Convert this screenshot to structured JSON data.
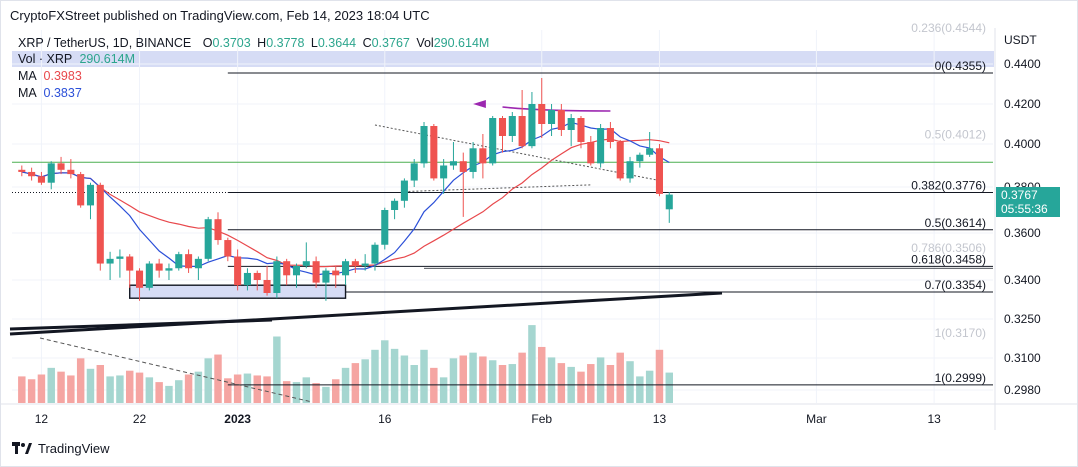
{
  "header": {
    "published_text": "CryptoFXStreet published on TradingView.com, Feb 14, 2023 18:04 UTC"
  },
  "legend": {
    "symbol_text": "XRP / TetherUS, 1D, BINANCE",
    "o_label": "O",
    "o_value": "0.3703",
    "h_label": "H",
    "h_value": "0.3778",
    "l_label": "L",
    "l_value": "0.3644",
    "c_label": "C",
    "c_value": "0.3767",
    "vol_label": "Vol",
    "vol_value": "290.614M",
    "vol_xrp_label": "Vol · XRP",
    "vol_xrp_value": "290.614M",
    "ma1_label": "MA",
    "ma1_value": "0.3983",
    "ma2_label": "MA",
    "ma2_value": "0.3837"
  },
  "price_badge": {
    "price": "0.3767",
    "countdown": "05:55:36"
  },
  "footer": {
    "brand": "TradingView"
  },
  "colors": {
    "up": "#26a69a",
    "down": "#ef5350",
    "vol_up": "#a5d6d0",
    "vol_down": "#f5a5a2",
    "ma_red": "#e8484c",
    "ma_blue": "#2b4fd8",
    "purple": "#9c27b0",
    "green_line": "#4caf50",
    "fib_faded": "#b2b5be"
  },
  "chart_data": {
    "type": "candlestick",
    "symbol": "XRP / TetherUS",
    "timeframe": "1D",
    "exchange": "BINANCE",
    "y_axis": {
      "unit": "USDT",
      "range": [
        0.295,
        0.4455
      ],
      "tick_labels": [
        "0.4400",
        "0.4200",
        "0.4000",
        "0.3800",
        "0.3600",
        "0.3400",
        "0.3250",
        "0.3100",
        "0.2980"
      ]
    },
    "x_axis": {
      "range": [
        "2022-12-09",
        "2023-03-19"
      ],
      "tick_labels": [
        {
          "label": "12",
          "date": "2022-12-12"
        },
        {
          "label": "22",
          "date": "2022-12-22"
        },
        {
          "label": "2023",
          "date": "2023-01-01"
        },
        {
          "label": "16",
          "date": "2023-01-16"
        },
        {
          "label": "Feb",
          "date": "2023-02-01"
        },
        {
          "label": "13",
          "date": "2023-02-13"
        },
        {
          "label": "Mar",
          "date": "2023-03-01"
        },
        {
          "label": "13",
          "date": "2023-03-13"
        }
      ]
    },
    "candles": [
      {
        "date": "2022-12-10",
        "o": 0.388,
        "h": 0.39,
        "l": 0.385,
        "c": 0.387,
        "v": 0.28
      },
      {
        "date": "2022-12-11",
        "o": 0.387,
        "h": 0.389,
        "l": 0.383,
        "c": 0.385,
        "v": 0.25
      },
      {
        "date": "2022-12-12",
        "o": 0.385,
        "h": 0.387,
        "l": 0.381,
        "c": 0.382,
        "v": 0.3
      },
      {
        "date": "2022-12-13",
        "o": 0.382,
        "h": 0.392,
        "l": 0.379,
        "c": 0.391,
        "v": 0.37
      },
      {
        "date": "2022-12-14",
        "o": 0.391,
        "h": 0.394,
        "l": 0.386,
        "c": 0.388,
        "v": 0.33
      },
      {
        "date": "2022-12-15",
        "o": 0.388,
        "h": 0.393,
        "l": 0.384,
        "c": 0.386,
        "v": 0.29
      },
      {
        "date": "2022-12-16",
        "o": 0.386,
        "h": 0.387,
        "l": 0.371,
        "c": 0.372,
        "v": 0.47
      },
      {
        "date": "2022-12-17",
        "o": 0.372,
        "h": 0.382,
        "l": 0.366,
        "c": 0.381,
        "v": 0.36
      },
      {
        "date": "2022-12-18",
        "o": 0.381,
        "h": 0.382,
        "l": 0.344,
        "c": 0.347,
        "v": 0.4
      },
      {
        "date": "2022-12-19",
        "o": 0.347,
        "h": 0.352,
        "l": 0.34,
        "c": 0.349,
        "v": 0.28
      },
      {
        "date": "2022-12-20",
        "o": 0.349,
        "h": 0.353,
        "l": 0.341,
        "c": 0.35,
        "v": 0.29
      },
      {
        "date": "2022-12-21",
        "o": 0.35,
        "h": 0.351,
        "l": 0.337,
        "c": 0.344,
        "v": 0.34
      },
      {
        "date": "2022-12-22",
        "o": 0.344,
        "h": 0.345,
        "l": 0.332,
        "c": 0.337,
        "v": 0.32
      },
      {
        "date": "2022-12-23",
        "o": 0.337,
        "h": 0.348,
        "l": 0.336,
        "c": 0.347,
        "v": 0.27
      },
      {
        "date": "2022-12-24",
        "o": 0.347,
        "h": 0.349,
        "l": 0.341,
        "c": 0.344,
        "v": 0.22
      },
      {
        "date": "2022-12-25",
        "o": 0.344,
        "h": 0.347,
        "l": 0.34,
        "c": 0.345,
        "v": 0.18
      },
      {
        "date": "2022-12-26",
        "o": 0.345,
        "h": 0.352,
        "l": 0.344,
        "c": 0.351,
        "v": 0.24
      },
      {
        "date": "2022-12-27",
        "o": 0.351,
        "h": 0.353,
        "l": 0.343,
        "c": 0.345,
        "v": 0.3
      },
      {
        "date": "2022-12-28",
        "o": 0.345,
        "h": 0.35,
        "l": 0.34,
        "c": 0.349,
        "v": 0.33
      },
      {
        "date": "2022-12-29",
        "o": 0.349,
        "h": 0.367,
        "l": 0.348,
        "c": 0.366,
        "v": 0.47
      },
      {
        "date": "2022-12-30",
        "o": 0.366,
        "h": 0.369,
        "l": 0.355,
        "c": 0.357,
        "v": 0.51
      },
      {
        "date": "2022-12-31",
        "o": 0.357,
        "h": 0.358,
        "l": 0.348,
        "c": 0.35,
        "v": 0.26
      },
      {
        "date": "2023-01-01",
        "o": 0.35,
        "h": 0.353,
        "l": 0.336,
        "c": 0.338,
        "v": 0.3
      },
      {
        "date": "2023-01-02",
        "o": 0.338,
        "h": 0.345,
        "l": 0.336,
        "c": 0.343,
        "v": 0.31
      },
      {
        "date": "2023-01-03",
        "o": 0.343,
        "h": 0.344,
        "l": 0.336,
        "c": 0.34,
        "v": 0.29
      },
      {
        "date": "2023-01-04",
        "o": 0.34,
        "h": 0.346,
        "l": 0.334,
        "c": 0.335,
        "v": 0.28
      },
      {
        "date": "2023-01-05",
        "o": 0.335,
        "h": 0.35,
        "l": 0.333,
        "c": 0.348,
        "v": 0.7
      },
      {
        "date": "2023-01-06",
        "o": 0.348,
        "h": 0.349,
        "l": 0.338,
        "c": 0.342,
        "v": 0.23
      },
      {
        "date": "2023-01-07",
        "o": 0.342,
        "h": 0.347,
        "l": 0.337,
        "c": 0.346,
        "v": 0.22
      },
      {
        "date": "2023-01-08",
        "o": 0.346,
        "h": 0.356,
        "l": 0.345,
        "c": 0.348,
        "v": 0.27
      },
      {
        "date": "2023-01-09",
        "o": 0.348,
        "h": 0.35,
        "l": 0.337,
        "c": 0.339,
        "v": 0.21
      },
      {
        "date": "2023-01-10",
        "o": 0.339,
        "h": 0.345,
        "l": 0.332,
        "c": 0.344,
        "v": 0.17
      },
      {
        "date": "2023-01-11",
        "o": 0.344,
        "h": 0.346,
        "l": 0.337,
        "c": 0.342,
        "v": 0.25
      },
      {
        "date": "2023-01-12",
        "o": 0.342,
        "h": 0.349,
        "l": 0.338,
        "c": 0.348,
        "v": 0.37
      },
      {
        "date": "2023-01-13",
        "o": 0.348,
        "h": 0.349,
        "l": 0.343,
        "c": 0.346,
        "v": 0.42
      },
      {
        "date": "2023-01-14",
        "o": 0.346,
        "h": 0.351,
        "l": 0.344,
        "c": 0.347,
        "v": 0.46
      },
      {
        "date": "2023-01-15",
        "o": 0.347,
        "h": 0.356,
        "l": 0.344,
        "c": 0.355,
        "v": 0.56
      },
      {
        "date": "2023-01-16",
        "o": 0.355,
        "h": 0.371,
        "l": 0.353,
        "c": 0.37,
        "v": 0.66
      },
      {
        "date": "2023-01-17",
        "o": 0.37,
        "h": 0.375,
        "l": 0.366,
        "c": 0.374,
        "v": 0.57
      },
      {
        "date": "2023-01-18",
        "o": 0.374,
        "h": 0.384,
        "l": 0.371,
        "c": 0.383,
        "v": 0.5
      },
      {
        "date": "2023-01-19",
        "o": 0.383,
        "h": 0.393,
        "l": 0.38,
        "c": 0.391,
        "v": 0.4
      },
      {
        "date": "2023-01-20",
        "o": 0.391,
        "h": 0.411,
        "l": 0.389,
        "c": 0.409,
        "v": 0.56
      },
      {
        "date": "2023-01-21",
        "o": 0.409,
        "h": 0.41,
        "l": 0.383,
        "c": 0.384,
        "v": 0.37
      },
      {
        "date": "2023-01-22",
        "o": 0.384,
        "h": 0.393,
        "l": 0.377,
        "c": 0.39,
        "v": 0.27
      },
      {
        "date": "2023-01-23",
        "o": 0.39,
        "h": 0.401,
        "l": 0.388,
        "c": 0.392,
        "v": 0.47
      },
      {
        "date": "2023-01-24",
        "o": 0.392,
        "h": 0.396,
        "l": 0.367,
        "c": 0.387,
        "v": 0.5
      },
      {
        "date": "2023-01-25",
        "o": 0.387,
        "h": 0.401,
        "l": 0.384,
        "c": 0.398,
        "v": 0.53
      },
      {
        "date": "2023-01-26",
        "o": 0.398,
        "h": 0.405,
        "l": 0.384,
        "c": 0.391,
        "v": 0.49
      },
      {
        "date": "2023-01-27",
        "o": 0.391,
        "h": 0.414,
        "l": 0.39,
        "c": 0.413,
        "v": 0.45
      },
      {
        "date": "2023-01-28",
        "o": 0.413,
        "h": 0.414,
        "l": 0.396,
        "c": 0.404,
        "v": 0.4
      },
      {
        "date": "2023-01-29",
        "o": 0.404,
        "h": 0.416,
        "l": 0.401,
        "c": 0.414,
        "v": 0.41
      },
      {
        "date": "2023-01-30",
        "o": 0.414,
        "h": 0.427,
        "l": 0.398,
        "c": 0.399,
        "v": 0.53
      },
      {
        "date": "2023-01-31",
        "o": 0.399,
        "h": 0.426,
        "l": 0.398,
        "c": 0.42,
        "v": 0.82
      },
      {
        "date": "2023-02-01",
        "o": 0.42,
        "h": 0.433,
        "l": 0.403,
        "c": 0.41,
        "v": 0.59
      },
      {
        "date": "2023-02-02",
        "o": 0.41,
        "h": 0.42,
        "l": 0.404,
        "c": 0.417,
        "v": 0.48
      },
      {
        "date": "2023-02-03",
        "o": 0.417,
        "h": 0.42,
        "l": 0.404,
        "c": 0.407,
        "v": 0.42
      },
      {
        "date": "2023-02-04",
        "o": 0.407,
        "h": 0.415,
        "l": 0.399,
        "c": 0.413,
        "v": 0.38
      },
      {
        "date": "2023-02-05",
        "o": 0.413,
        "h": 0.414,
        "l": 0.398,
        "c": 0.401,
        "v": 0.33
      },
      {
        "date": "2023-02-06",
        "o": 0.401,
        "h": 0.404,
        "l": 0.39,
        "c": 0.391,
        "v": 0.41
      },
      {
        "date": "2023-02-07",
        "o": 0.391,
        "h": 0.41,
        "l": 0.389,
        "c": 0.408,
        "v": 0.48
      },
      {
        "date": "2023-02-08",
        "o": 0.408,
        "h": 0.411,
        "l": 0.398,
        "c": 0.401,
        "v": 0.4
      },
      {
        "date": "2023-02-09",
        "o": 0.401,
        "h": 0.402,
        "l": 0.383,
        "c": 0.384,
        "v": 0.53
      },
      {
        "date": "2023-02-10",
        "o": 0.384,
        "h": 0.394,
        "l": 0.382,
        "c": 0.392,
        "v": 0.44
      },
      {
        "date": "2023-02-11",
        "o": 0.392,
        "h": 0.396,
        "l": 0.389,
        "c": 0.395,
        "v": 0.28
      },
      {
        "date": "2023-02-12",
        "o": 0.395,
        "h": 0.406,
        "l": 0.394,
        "c": 0.398,
        "v": 0.34
      },
      {
        "date": "2023-02-13",
        "o": 0.398,
        "h": 0.4,
        "l": 0.376,
        "c": 0.377,
        "v": 0.56
      },
      {
        "date": "2023-02-14",
        "o": 0.3703,
        "h": 0.3778,
        "l": 0.3644,
        "c": 0.3767,
        "v": 0.32
      }
    ],
    "moving_averages": [
      {
        "label": "MA",
        "value": 0.3983,
        "color": "#e8484c"
      },
      {
        "label": "MA",
        "value": 0.3837,
        "color": "#2b4fd8"
      }
    ],
    "fibonacci_levels": [
      {
        "ratio": "0.236",
        "price": 0.4544,
        "label": "0.236(0.4544)",
        "faded": true
      },
      {
        "ratio": "0",
        "price": 0.4355,
        "label": "0(0.4355)",
        "faded": false
      },
      {
        "ratio": "0.5",
        "price": 0.4012,
        "label": "0.5(0.4012)",
        "faded": true
      },
      {
        "ratio": "0.382",
        "price": 0.3776,
        "label": "0.382(0.3776)",
        "faded": false
      },
      {
        "ratio": "0.5",
        "price": 0.3614,
        "label": "0.5(0.3614)",
        "faded": false
      },
      {
        "ratio": "0.786",
        "price": 0.3506,
        "label": "0.786(0.3506)",
        "faded": true
      },
      {
        "ratio": "0.618",
        "price": 0.3458,
        "label": "0.618(0.3458)",
        "faded": false
      },
      {
        "ratio": "0.7",
        "price": 0.3354,
        "label": "0.7(0.3354)",
        "faded": false
      },
      {
        "ratio": "1",
        "price": 0.317,
        "label": "1(0.3170)",
        "faded": true
      },
      {
        "ratio": "1",
        "price": 0.2999,
        "label": "1(0.2999)",
        "faded": false
      }
    ],
    "horizontal_lines": [
      {
        "price": 0.3915,
        "color": "#4caf50"
      }
    ],
    "grid": true,
    "legend_position": "top-left"
  }
}
